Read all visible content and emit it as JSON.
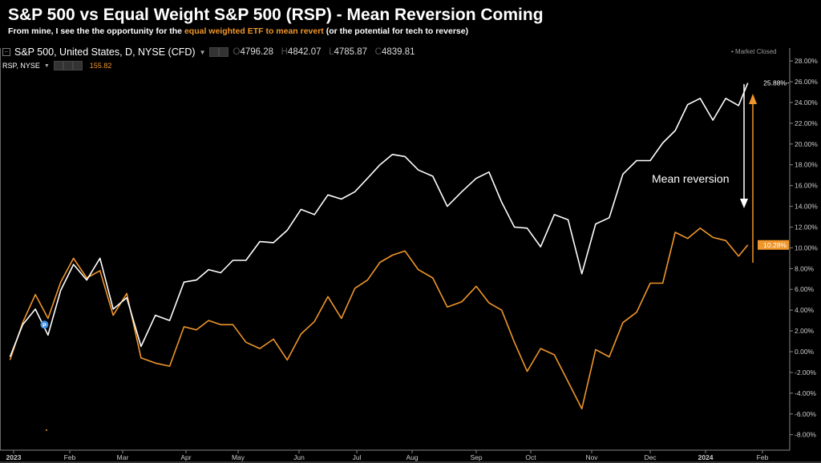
{
  "header": {
    "title": "S&P 500 vs Equal Weight S&P 500 (RSP) - Mean Reversion Coming",
    "subtitle_pre": "From mine, I see the the opportunity for the ",
    "subtitle_highlight": "equal weighted ETF to mean revert",
    "subtitle_post": " (or the potential for tech to reverse)"
  },
  "legend": {
    "main_symbol": "S&P 500, United States, D, NYSE (CFD)",
    "open_label": "O",
    "open": "4796.28",
    "high_label": "H",
    "high": "4842.07",
    "low_label": "L",
    "low": "4785.87",
    "close_label": "C",
    "close": "4839.81",
    "compare_symbol": "RSP, NYSE",
    "compare_value": "155.82",
    "dropdown_icon": "caret-down-icon",
    "market_status": "• Market Closed"
  },
  "annotation": {
    "text": "Mean reversion"
  },
  "colors": {
    "spx": "#ffffff",
    "rsp": "#f0962a",
    "background": "#000000",
    "marker": "#3d8fe6"
  },
  "chart_data": {
    "type": "line",
    "title": "S&P 500 vs Equal Weight S&P 500 (RSP) - Mean Reversion Coming",
    "yaxis_side": "right",
    "ylim": [
      -9,
      29
    ],
    "yticks": [
      "28.00%",
      "26.00%",
      "24.00%",
      "22.00%",
      "20.00%",
      "18.00%",
      "16.00%",
      "14.00%",
      "12.00%",
      "10.00%",
      "8.00%",
      "6.00%",
      "4.00%",
      "2.00%",
      "0.00%",
      "-2.00%",
      "-4.00%",
      "-6.00%",
      "-8.00%"
    ],
    "ytick_values": [
      28,
      26,
      24,
      22,
      20,
      18,
      16,
      14,
      12,
      10,
      8,
      6,
      4,
      2,
      0,
      -2,
      -4,
      -6,
      -8
    ],
    "xticks": [
      {
        "label": "2023",
        "date": "2023-01-01",
        "bold": true
      },
      {
        "label": "Feb",
        "date": "2023-02-01"
      },
      {
        "label": "Mar",
        "date": "2023-03-01"
      },
      {
        "label": "Apr",
        "date": "2023-04-01"
      },
      {
        "label": "May",
        "date": "2023-05-01"
      },
      {
        "label": "Jun",
        "date": "2023-06-01"
      },
      {
        "label": "Jul",
        "date": "2023-07-01"
      },
      {
        "label": "Aug",
        "date": "2023-08-01"
      },
      {
        "label": "Sep",
        "date": "2023-09-01"
      },
      {
        "label": "Oct",
        "date": "2023-10-01"
      },
      {
        "label": "Nov",
        "date": "2023-11-01"
      },
      {
        "label": "Dec",
        "date": "2023-12-01"
      },
      {
        "label": "2024",
        "date": "2024-01-01",
        "bold": true
      },
      {
        "label": "Feb",
        "date": "2024-02-01"
      }
    ],
    "x": [
      "2022-12-30",
      "2023-01-06",
      "2023-01-13",
      "2023-01-20",
      "2023-01-27",
      "2023-02-03",
      "2023-02-10",
      "2023-02-17",
      "2023-02-24",
      "2023-03-03",
      "2023-03-10",
      "2023-03-17",
      "2023-03-24",
      "2023-03-31",
      "2023-04-07",
      "2023-04-14",
      "2023-04-21",
      "2023-04-28",
      "2023-05-05",
      "2023-05-12",
      "2023-05-19",
      "2023-05-26",
      "2023-06-02",
      "2023-06-09",
      "2023-06-16",
      "2023-06-23",
      "2023-06-30",
      "2023-07-07",
      "2023-07-14",
      "2023-07-21",
      "2023-07-28",
      "2023-08-04",
      "2023-08-11",
      "2023-08-18",
      "2023-08-25",
      "2023-09-01",
      "2023-09-08",
      "2023-09-15",
      "2023-09-22",
      "2023-09-29",
      "2023-10-06",
      "2023-10-13",
      "2023-10-20",
      "2023-10-27",
      "2023-11-03",
      "2023-11-10",
      "2023-11-17",
      "2023-11-24",
      "2023-12-01",
      "2023-12-08",
      "2023-12-15",
      "2023-12-22",
      "2023-12-29",
      "2024-01-05",
      "2024-01-12",
      "2024-01-19",
      "2024-01-24"
    ],
    "series": [
      {
        "name": "S&P 500, United States, D, NYSE (CFD)",
        "color": "#ffffff",
        "last_label": "25.88%",
        "values": [
          -0.5,
          2.6,
          4.1,
          1.6,
          5.9,
          8.4,
          6.9,
          9.0,
          4.1,
          5.2,
          0.5,
          3.5,
          3.0,
          6.7,
          6.9,
          7.9,
          7.6,
          8.8,
          8.8,
          10.6,
          10.5,
          11.7,
          13.7,
          13.2,
          15.1,
          14.7,
          15.4,
          16.7,
          18.0,
          19.0,
          18.8,
          17.5,
          16.9,
          14.0,
          15.4,
          16.7,
          17.3,
          14.4,
          12.0,
          11.9,
          10.1,
          13.2,
          12.7,
          7.5,
          12.3,
          12.9,
          17.1,
          18.4,
          18.4,
          20.1,
          21.3,
          23.8,
          24.4,
          22.3,
          24.4,
          23.7,
          25.88
        ]
      },
      {
        "name": "RSP, NYSE",
        "color": "#f0962a",
        "last_label": "10.28%",
        "values": [
          -0.8,
          2.8,
          5.5,
          3.2,
          6.7,
          9.0,
          7.1,
          7.8,
          3.5,
          5.6,
          -0.6,
          -1.1,
          -1.4,
          2.4,
          2.1,
          3.0,
          2.6,
          2.6,
          0.9,
          0.3,
          1.2,
          -0.8,
          1.7,
          2.9,
          5.3,
          3.2,
          6.1,
          6.9,
          8.6,
          9.3,
          9.7,
          7.9,
          7.1,
          4.3,
          4.8,
          6.3,
          4.7,
          4.0,
          0.9,
          -1.9,
          0.3,
          -0.3,
          -2.9,
          -5.5,
          0.2,
          -0.5,
          2.8,
          3.8,
          6.6,
          6.6,
          11.5,
          10.9,
          11.9,
          11.0,
          10.7,
          9.2,
          10.28
        ]
      }
    ],
    "markers": [
      {
        "label": "P",
        "date": "2023-01-18",
        "series": "S&P 500, United States, D, NYSE (CFD)"
      }
    ],
    "arrows": [
      {
        "direction": "down",
        "color": "#ffffff"
      },
      {
        "direction": "up",
        "color": "#f0962a"
      }
    ],
    "grid": false
  }
}
